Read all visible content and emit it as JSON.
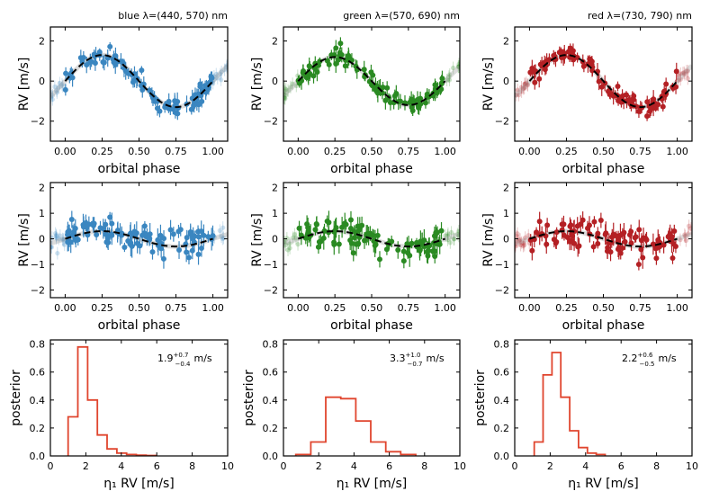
{
  "chart_data": [
    {
      "panel": "rv-top",
      "type": "scatter",
      "title": "blue λ=(440, 570) nm",
      "color": "#3a86c0",
      "xlabel": "orbital phase",
      "ylabel": "RV [m/s]",
      "xlim": [
        -0.1,
        1.1
      ],
      "ylim": [
        -3,
        2.7
      ],
      "xticks": [
        "0.00",
        "0.25",
        "0.50",
        "0.75",
        "1.00"
      ],
      "yticks": [
        "2",
        "0",
        "−2"
      ],
      "ytick_values": [
        2,
        0,
        -2
      ],
      "model": {
        "shape": "sine",
        "amplitude": 1.3,
        "peak_phase": 0.25
      }
    },
    {
      "panel": "rv-top",
      "type": "scatter",
      "title": "green λ=(570, 690) nm",
      "color": "#2a8a22",
      "xlabel": "orbital phase",
      "ylabel": "RV [m/s]",
      "xlim": [
        -0.1,
        1.1
      ],
      "ylim": [
        -3,
        2.7
      ],
      "xticks": [
        "0.00",
        "0.25",
        "0.50",
        "0.75",
        "1.00"
      ],
      "yticks": [
        "2",
        "0",
        "−2"
      ],
      "ytick_values": [
        2,
        0,
        -2
      ],
      "model": {
        "shape": "sine",
        "amplitude": 1.2,
        "peak_phase": 0.25
      }
    },
    {
      "panel": "rv-top",
      "type": "scatter",
      "title": "red λ=(730, 790) nm",
      "color": "#b42024",
      "xlabel": "orbital phase",
      "ylabel": "RV [m/s]",
      "xlim": [
        -0.1,
        1.1
      ],
      "ylim": [
        -3,
        2.7
      ],
      "xticks": [
        "0.00",
        "0.25",
        "0.50",
        "0.75",
        "1.00"
      ],
      "yticks": [
        "2",
        "0",
        "−2"
      ],
      "ytick_values": [
        2,
        0,
        -2
      ],
      "model": {
        "shape": "sine",
        "amplitude": 1.3,
        "peak_phase": 0.25
      }
    },
    {
      "panel": "rv-mid",
      "type": "scatter",
      "title": "",
      "color": "#3a86c0",
      "xlabel": "orbital phase",
      "ylabel": "RV [m/s]",
      "xlim": [
        -0.1,
        1.1
      ],
      "ylim": [
        -2.3,
        2.2
      ],
      "xticks": [
        "0.00",
        "0.25",
        "0.50",
        "0.75",
        "1.00"
      ],
      "yticks": [
        "2",
        "1",
        "0",
        "−1",
        "−2"
      ],
      "ytick_values": [
        2,
        1,
        0,
        -1,
        -2
      ],
      "model": {
        "shape": "sine",
        "amplitude": 0.3,
        "peak_phase": 0.25
      }
    },
    {
      "panel": "rv-mid",
      "type": "scatter",
      "title": "",
      "color": "#2a8a22",
      "xlabel": "orbital phase",
      "ylabel": "RV [m/s]",
      "xlim": [
        -0.1,
        1.1
      ],
      "ylim": [
        -2.3,
        2.2
      ],
      "xticks": [
        "0.00",
        "0.25",
        "0.50",
        "0.75",
        "1.00"
      ],
      "yticks": [
        "2",
        "1",
        "0",
        "−1",
        "−2"
      ],
      "ytick_values": [
        2,
        1,
        0,
        -1,
        -2
      ],
      "model": {
        "shape": "sine",
        "amplitude": 0.3,
        "peak_phase": 0.25
      }
    },
    {
      "panel": "rv-mid",
      "type": "scatter",
      "title": "",
      "color": "#b42024",
      "xlabel": "orbital phase",
      "ylabel": "RV [m/s]",
      "xlim": [
        -0.1,
        1.1
      ],
      "ylim": [
        -2.3,
        2.2
      ],
      "xticks": [
        "0.00",
        "0.25",
        "0.50",
        "0.75",
        "1.00"
      ],
      "yticks": [
        "2",
        "1",
        "0",
        "−1",
        "−2"
      ],
      "ytick_values": [
        2,
        1,
        0,
        -1,
        -2
      ],
      "model": {
        "shape": "sine",
        "amplitude": 0.3,
        "peak_phase": 0.25
      }
    },
    {
      "panel": "hist",
      "type": "bar",
      "title": "",
      "color": "#e0452e",
      "annotation": "1.9^{+0.7}_{−0.4} m/s",
      "annot": {
        "value": "1.9",
        "plus": "+0.7",
        "minus": "−0.4",
        "unit": "m/s"
      },
      "xlabel": "η₁ RV [m/s]",
      "ylabel": "posterior",
      "xlim": [
        0,
        10
      ],
      "ylim": [
        0,
        0.83
      ],
      "xticks": [
        "0",
        "2",
        "4",
        "6",
        "8",
        "10"
      ],
      "yticks": [
        "0.0",
        "0.2",
        "0.4",
        "0.6",
        "0.8"
      ],
      "ytick_values": [
        0,
        0.2,
        0.4,
        0.6,
        0.8
      ],
      "bin_edges": [
        1.0,
        1.55,
        2.1,
        2.65,
        3.2,
        3.75,
        4.3,
        4.85,
        5.4,
        5.95
      ],
      "values": [
        0.28,
        0.78,
        0.4,
        0.15,
        0.05,
        0.02,
        0.01,
        0.005,
        0.003
      ]
    },
    {
      "panel": "hist",
      "type": "bar",
      "title": "",
      "color": "#e0452e",
      "annotation": "3.3^{+1.0}_{−0.7} m/s",
      "annot": {
        "value": "3.3",
        "plus": "+1.0",
        "minus": "−0.7",
        "unit": "m/s"
      },
      "xlabel": "η₁ RV [m/s]",
      "ylabel": "posterior",
      "xlim": [
        0,
        10
      ],
      "ylim": [
        0,
        0.83
      ],
      "xticks": [
        "0",
        "2",
        "4",
        "6",
        "8",
        "10"
      ],
      "yticks": [
        "0.0",
        "0.2",
        "0.4",
        "0.6",
        "0.8"
      ],
      "ytick_values": [
        0,
        0.2,
        0.4,
        0.6,
        0.8
      ],
      "bin_edges": [
        0.7,
        1.55,
        2.4,
        3.25,
        4.1,
        4.95,
        5.8,
        6.65,
        7.5
      ],
      "values": [
        0.01,
        0.1,
        0.42,
        0.41,
        0.25,
        0.1,
        0.03,
        0.01
      ]
    },
    {
      "panel": "hist",
      "type": "bar",
      "title": "",
      "color": "#e0452e",
      "annotation": "2.2^{+0.6}_{−0.5} m/s",
      "annot": {
        "value": "2.2",
        "plus": "+0.6",
        "minus": "−0.5",
        "unit": "m/s"
      },
      "xlabel": "η₁ RV [m/s]",
      "ylabel": "posterior",
      "xlim": [
        0,
        10
      ],
      "ylim": [
        0,
        0.83
      ],
      "xticks": [
        "0",
        "2",
        "4",
        "6",
        "8",
        "10"
      ],
      "yticks": [
        "0.0",
        "0.2",
        "0.4",
        "0.6",
        "0.8"
      ],
      "ytick_values": [
        0,
        0.2,
        0.4,
        0.6,
        0.8
      ],
      "bin_edges": [
        1.1,
        1.6,
        2.1,
        2.6,
        3.1,
        3.6,
        4.1,
        4.6,
        5.1
      ],
      "values": [
        0.1,
        0.58,
        0.74,
        0.42,
        0.18,
        0.06,
        0.02,
        0.01
      ]
    }
  ]
}
